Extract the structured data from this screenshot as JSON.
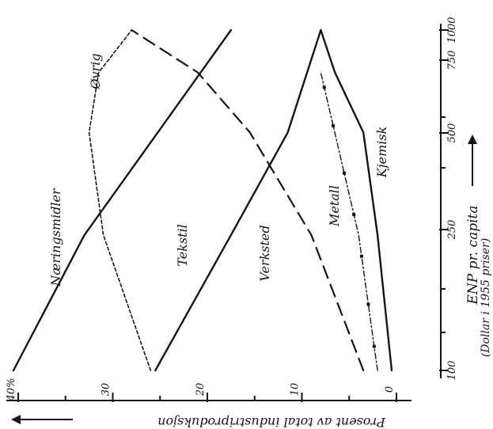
{
  "chart_data": {
    "type": "line",
    "orientation": "rotated-90-clockwise",
    "x_axis": {
      "label": "ENP pr. capita",
      "sublabel": "(Dollar i 1955 priser)",
      "ticks": [
        "100",
        "250",
        "500",
        "750",
        "1000"
      ],
      "scale": "log",
      "range": [
        100,
        1000
      ]
    },
    "y_axis": {
      "label": "Prosent av total industriproduksjon",
      "ticks": [
        "0",
        "10",
        "20",
        "30",
        "40%"
      ],
      "range": [
        0,
        40
      ]
    },
    "series": [
      {
        "name": "Næringsmidler",
        "style": "solid",
        "x": [
          100,
          250,
          1000
        ],
        "y": [
          40.5,
          33,
          17.5
        ]
      },
      {
        "name": "Øvrig",
        "style": "dotted",
        "x": [
          100,
          250,
          500,
          750,
          1000
        ],
        "y": [
          26,
          31,
          32.5,
          31.5,
          28
        ]
      },
      {
        "name": "Tekstil",
        "style": "solid",
        "x": [
          100,
          250,
          500,
          1000
        ],
        "y": [
          25.5,
          17.5,
          11.5,
          8
        ]
      },
      {
        "name": "Verksted",
        "style": "long-dash",
        "x": [
          100,
          250,
          500,
          750,
          1000
        ],
        "y": [
          3.5,
          9,
          15.5,
          21,
          28
        ]
      },
      {
        "name": "Metall",
        "style": "dash-dot-marked",
        "x": [
          100,
          250,
          750
        ],
        "y": [
          2,
          4,
          8
        ]
      },
      {
        "name": "Kjemisk",
        "style": "solid",
        "x": [
          100,
          250,
          500,
          750,
          1000
        ],
        "y": [
          0.5,
          2,
          3.5,
          6.5,
          8
        ]
      }
    ]
  }
}
